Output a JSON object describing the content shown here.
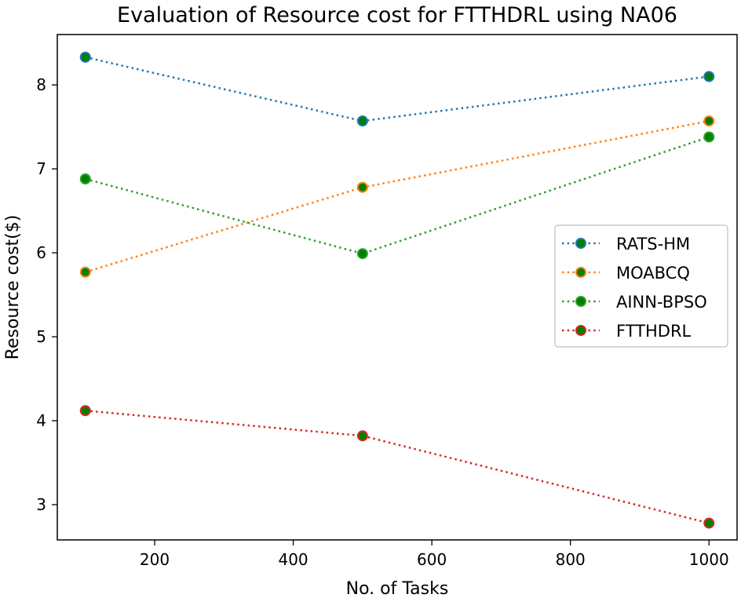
{
  "chart_data": {
    "type": "line",
    "title": "Evaluation of Resource cost for FTTHDRL using NA06",
    "xlabel": "No. of Tasks",
    "ylabel": "Resource cost($)",
    "x": [
      100,
      500,
      1000
    ],
    "xlim": [
      59.5,
      1040.5
    ],
    "ylim": [
      2.58,
      8.6
    ],
    "xticks": [
      200,
      400,
      600,
      800,
      1000
    ],
    "yticks": [
      3,
      4,
      5,
      6,
      7,
      8
    ],
    "grid": false,
    "legend_position": "center-right",
    "marker_face": "#008000",
    "series": [
      {
        "name": "RATS-HM",
        "values": [
          8.33,
          7.57,
          8.1
        ],
        "color": "#1f77b4"
      },
      {
        "name": "MOABCQ",
        "values": [
          5.77,
          6.78,
          7.57
        ],
        "color": "#ff7f0e"
      },
      {
        "name": "AINN-BPSO",
        "values": [
          6.88,
          5.99,
          7.38
        ],
        "color": "#2ca02c"
      },
      {
        "name": "FTTHDRL",
        "values": [
          4.12,
          3.82,
          2.78
        ],
        "color": "#d62728"
      }
    ]
  }
}
